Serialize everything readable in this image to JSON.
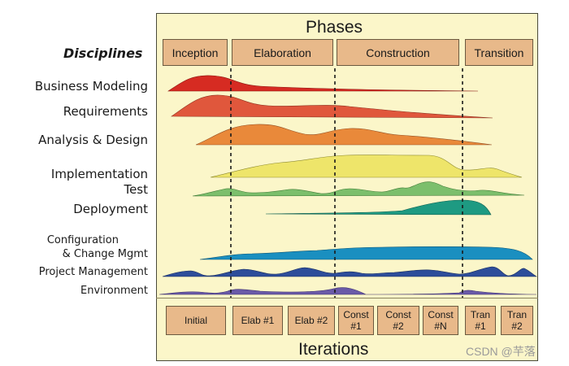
{
  "header": {
    "title": "Phases"
  },
  "footer": {
    "title": "Iterations"
  },
  "disciplines_heading": "Disciplines",
  "phases": [
    "Inception",
    "Elaboration",
    "Construction",
    "Transition"
  ],
  "disciplines": [
    "Business Modeling",
    "Requirements",
    "Analysis & Design",
    "Implementation",
    "Test",
    "Deployment",
    "Configuration",
    "& Change Mgmt",
    "Project Management",
    "Environment"
  ],
  "iterations": [
    {
      "line1": "Initial",
      "line2": ""
    },
    {
      "line1": "Elab #1",
      "line2": ""
    },
    {
      "line1": "Elab #2",
      "line2": ""
    },
    {
      "line1": "Const",
      "line2": "#1"
    },
    {
      "line1": "Const",
      "line2": "#2"
    },
    {
      "line1": "Const",
      "line2": "#N"
    },
    {
      "line1": "Tran",
      "line2": "#1"
    },
    {
      "line1": "Tran",
      "line2": "#2"
    }
  ],
  "watermark": "CSDN @芉落",
  "colors": {
    "panel": "#fbf6c9",
    "phase_box": "#e8b98a",
    "business_modeling": "#d62b22",
    "requirements": "#e0573c",
    "analysis_design": "#e9893a",
    "implementation": "#eee56a",
    "test": "#7cbf6c",
    "deployment": "#1e9a82",
    "configuration": "#1a8fc0",
    "project_management": "#2d4d9a",
    "environment": "#6a5aa8"
  }
}
